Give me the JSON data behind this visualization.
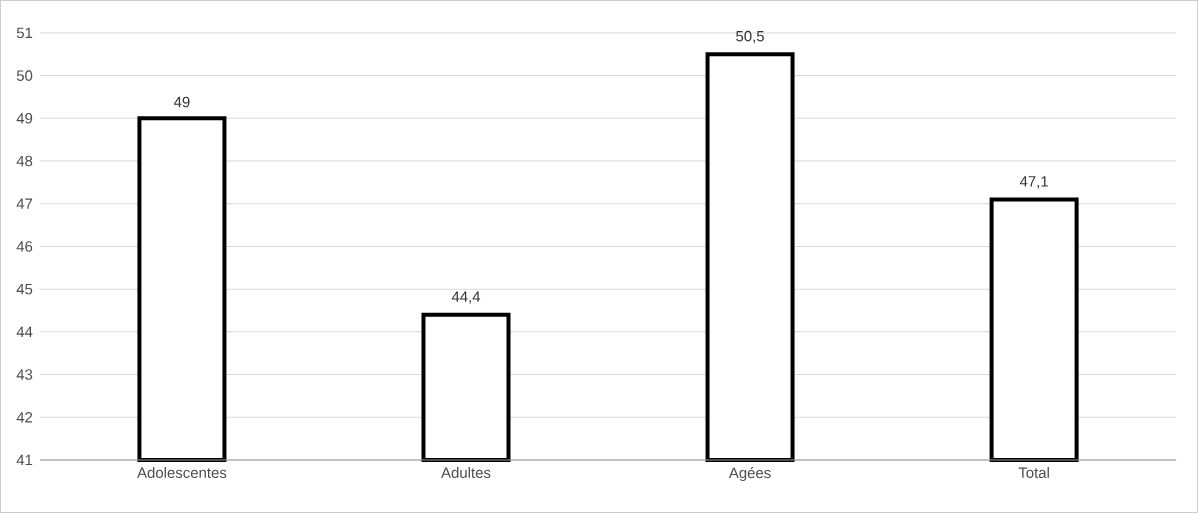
{
  "chart_data": {
    "type": "bar",
    "categories": [
      "Adolescentes",
      "Adultes",
      "Agées",
      "Total"
    ],
    "values": [
      49,
      44.4,
      50.5,
      47.1
    ],
    "value_labels": [
      "49",
      "44,4",
      "50,5",
      "47,1"
    ],
    "color": "#000000",
    "ylim": [
      41,
      51
    ],
    "yticks": [
      41,
      42,
      43,
      44,
      45,
      46,
      47,
      48,
      49,
      50,
      51
    ],
    "grid": "y"
  }
}
